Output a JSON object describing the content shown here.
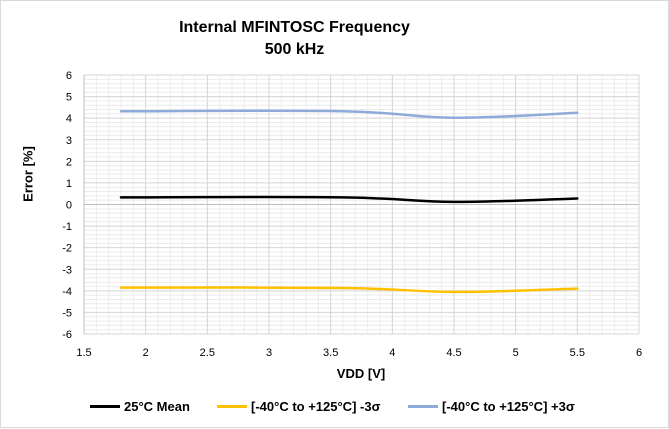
{
  "chart_data": {
    "type": "line",
    "title": "Internal MFINTOSC Frequency",
    "subtitle": "500 kHz",
    "xlabel": "VDD [V]",
    "ylabel": "Error [%]",
    "xlim": [
      1.5,
      6
    ],
    "ylim": [
      -6,
      6
    ],
    "x_ticks": [
      1.5,
      2,
      2.5,
      3,
      3.5,
      4,
      4.5,
      5,
      5.5,
      6
    ],
    "y_ticks": [
      -6,
      -5,
      -4,
      -3,
      -2,
      -1,
      0,
      1,
      2,
      3,
      4,
      5,
      6
    ],
    "x_tick_labels": [
      "1.5",
      "2",
      "2.5",
      "3",
      "3.5",
      "4",
      "4.5",
      "5",
      "5.5",
      "6"
    ],
    "y_tick_labels": [
      "-6",
      "-5",
      "-4",
      "-3",
      "-2",
      "-1",
      "0",
      "1",
      "2",
      "3",
      "4",
      "5",
      "6"
    ],
    "grid": true,
    "minor_grid": true,
    "legend_position": "bottom",
    "x": [
      1.8,
      3.6,
      4.5,
      5.5
    ],
    "series": [
      {
        "name": "25°C Mean",
        "color": "#000000",
        "values": [
          0.33,
          0.33,
          0.12,
          0.28
        ]
      },
      {
        "name": "[-40°C to +125°C]  -3σ",
        "color": "#ffc000",
        "values": [
          -3.85,
          -3.87,
          -4.05,
          -3.9
        ]
      },
      {
        "name": "[-40°C to +125°C] +3σ",
        "color": "#8eaadb",
        "values": [
          4.32,
          4.32,
          4.02,
          4.25
        ]
      }
    ]
  }
}
